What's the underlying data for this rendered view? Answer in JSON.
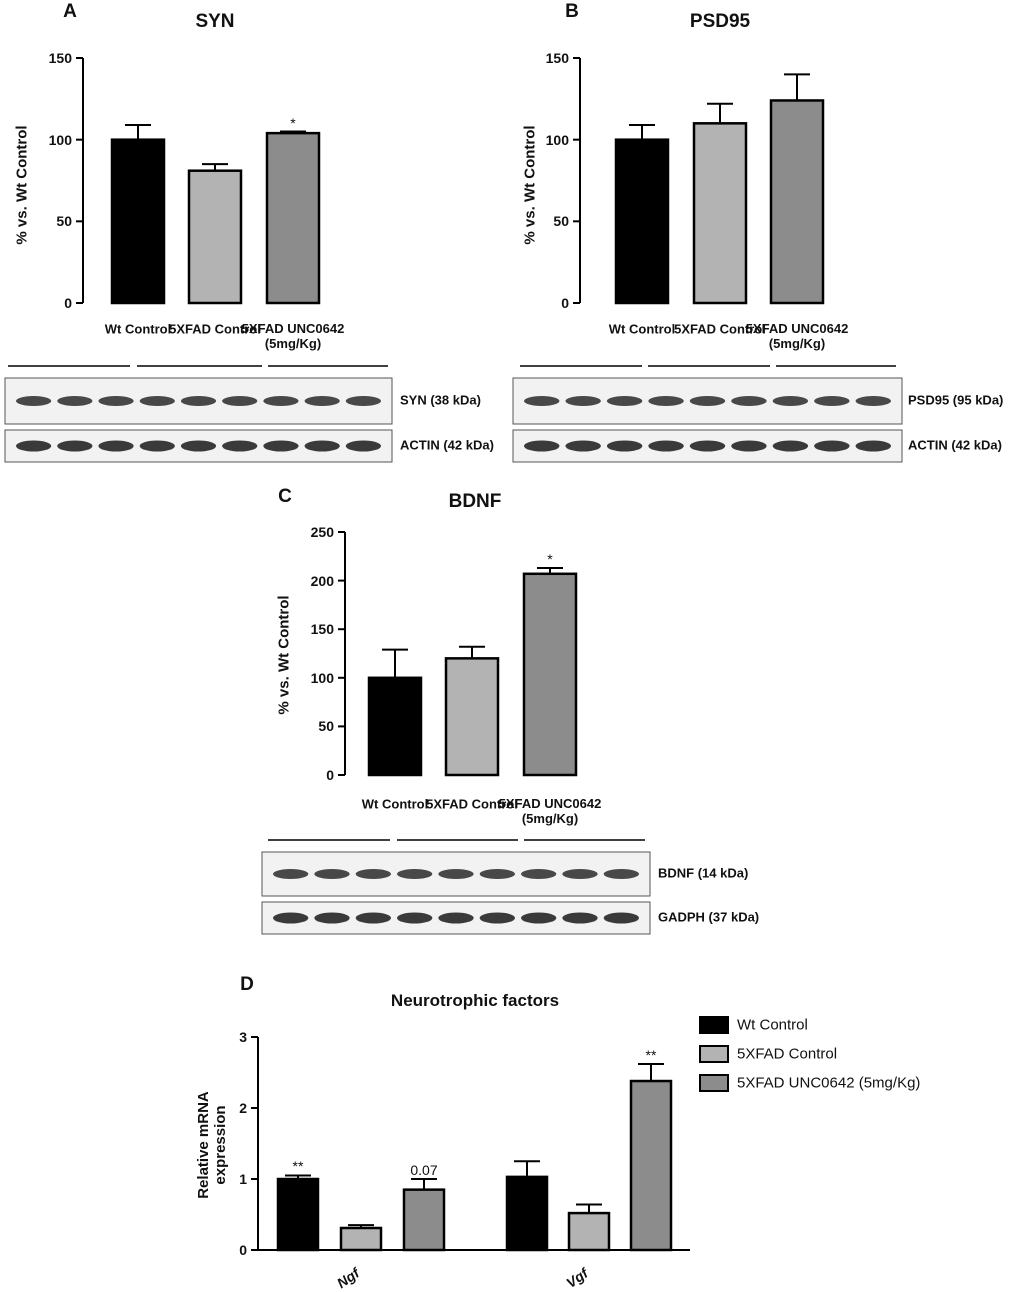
{
  "chart_data": [
    {
      "type": "bar",
      "panel": "A",
      "title": "SYN",
      "y_label": "% vs. Wt Control",
      "categories": [
        "Wt Control",
        "5XFAD Control",
        "5XFAD UNC0642\n(5mg/Kg)"
      ],
      "values": [
        100,
        81,
        104
      ],
      "errors": [
        9,
        4,
        1
      ],
      "significance": [
        null,
        null,
        "*"
      ],
      "colors": [
        "#000000",
        "#b3b3b3",
        "#8c8c8c"
      ],
      "ylim": [
        0,
        150
      ],
      "yticks": [
        0,
        50,
        100,
        150
      ],
      "blot_labels": [
        "SYN (38 kDa)",
        "ACTIN (42 kDa)"
      ]
    },
    {
      "type": "bar",
      "panel": "B",
      "title": "PSD95",
      "y_label": "% vs. Wt Control",
      "categories": [
        "Wt Control",
        "5XFAD Control",
        "5XFAD UNC0642\n(5mg/Kg)"
      ],
      "values": [
        100,
        110,
        124
      ],
      "errors": [
        9,
        12,
        16
      ],
      "significance": [
        null,
        null,
        null
      ],
      "colors": [
        "#000000",
        "#b3b3b3",
        "#8c8c8c"
      ],
      "ylim": [
        0,
        150
      ],
      "yticks": [
        0,
        50,
        100,
        150
      ],
      "blot_labels": [
        "PSD95 (95 kDa)",
        "ACTIN (42 kDa)"
      ]
    },
    {
      "type": "bar",
      "panel": "C",
      "title": "BDNF",
      "y_label": "% vs. Wt Control",
      "categories": [
        "Wt Control",
        "5XFAD Control",
        "5XFAD UNC0642\n(5mg/Kg)"
      ],
      "values": [
        100,
        120,
        207
      ],
      "errors": [
        29,
        12,
        6
      ],
      "significance": [
        null,
        null,
        "*"
      ],
      "colors": [
        "#000000",
        "#b3b3b3",
        "#8c8c8c"
      ],
      "ylim": [
        0,
        250
      ],
      "yticks": [
        0,
        50,
        100,
        150,
        200,
        250
      ],
      "blot_labels": [
        "BDNF (14 kDa)",
        "GADPH (37 kDa)"
      ]
    },
    {
      "type": "grouped_bar",
      "panel": "D",
      "title": "Neurotrophic factors",
      "y_label": "Relative mRNA\nexpression",
      "categories": [
        "Ngf",
        "Vgf"
      ],
      "series": [
        {
          "name": "Wt Control",
          "color": "#000000",
          "values": [
            1.0,
            1.03
          ],
          "errors": [
            0.05,
            0.22
          ],
          "significance": [
            "**",
            null
          ]
        },
        {
          "name": "5XFAD Control",
          "color": "#b3b3b3",
          "values": [
            0.31,
            0.52
          ],
          "errors": [
            0.04,
            0.12
          ],
          "significance": [
            null,
            null
          ]
        },
        {
          "name": "5XFAD UNC0642 (5mg/Kg)",
          "color": "#8c8c8c",
          "values": [
            0.85,
            2.38
          ],
          "errors": [
            0.15,
            0.24
          ],
          "significance": [
            "0.07",
            "**"
          ]
        }
      ],
      "ylim": [
        0,
        3
      ],
      "yticks": [
        0,
        1,
        2,
        3
      ],
      "legend": "right"
    }
  ]
}
